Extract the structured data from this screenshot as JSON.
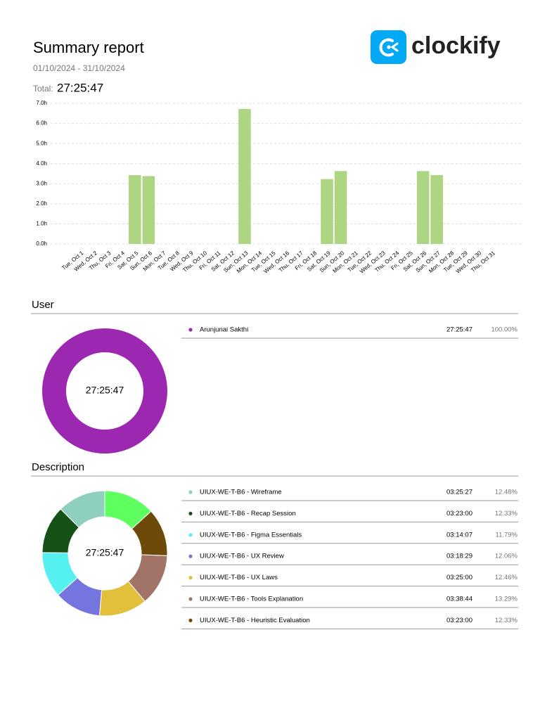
{
  "header": {
    "title": "Summary report",
    "date_range": "01/10/2024 - 31/10/2024",
    "total_label": "Total:",
    "total": "27:25:47",
    "brand": "clockify"
  },
  "chart_data": [
    {
      "type": "bar",
      "color": "#aed581",
      "grid": true,
      "categories": [
        "Tue, Oct 1",
        "Wed, Oct 2",
        "Thu, Oct 3",
        "Fri, Oct 4",
        "Sat, Oct 5",
        "Sun, Oct 6",
        "Mon, Oct 7",
        "Tue, Oct 8",
        "Wed, Oct 9",
        "Thu, Oct 10",
        "Fri, Oct 11",
        "Sat, Oct 12",
        "Sun, Oct 13",
        "Mon, Oct 14",
        "Tue, Oct 15",
        "Wed, Oct 16",
        "Thu, Oct 17",
        "Fri, Oct 18",
        "Sat, Oct 19",
        "Sun, Oct 20",
        "Mon, Oct 21",
        "Tue, Oct 22",
        "Wed, Oct 23",
        "Thu, Oct 24",
        "Fri, Oct 25",
        "Sat, Oct 26",
        "Sun, Oct 27",
        "Mon, Oct 28",
        "Tue, Oct 29",
        "Wed, Oct 30",
        "Thu, Oct 31"
      ],
      "values": [
        0,
        0,
        0,
        0,
        3.43,
        3.38,
        0,
        0,
        0,
        0,
        0,
        0,
        6.72,
        0,
        0,
        0,
        0,
        0,
        3.23,
        3.63,
        0,
        0,
        0,
        0,
        0,
        3.63,
        3.43,
        0,
        0,
        0,
        0
      ],
      "ylim": [
        0,
        7
      ],
      "yticks": [
        {
          "value": 0,
          "label": "0.0h"
        },
        {
          "value": 1,
          "label": "1.0h"
        },
        {
          "value": 2,
          "label": "2.0h"
        },
        {
          "value": 3,
          "label": "3.0h"
        },
        {
          "value": 4,
          "label": "4.0h"
        },
        {
          "value": 5,
          "label": "5.0h"
        },
        {
          "value": 6,
          "label": "6.0h"
        },
        {
          "value": 7,
          "label": "7.0h"
        }
      ]
    },
    {
      "type": "pie",
      "title": "User",
      "center_label": "27:25:47",
      "direction": "clockwise",
      "categories": [
        "Arunjunai Sakthi"
      ],
      "values": [
        100
      ],
      "value_labels": [
        "100.00%"
      ],
      "durations": [
        "27:25:47"
      ],
      "colors": [
        "#9c27b0"
      ]
    },
    {
      "type": "pie",
      "title": "Description",
      "center_label": "27:25:47",
      "direction": "counterclockwise",
      "categories": [
        "UIUX-WE-T-B6 -  Wireframe",
        "UIUX-WE-T-B6 -  Recap Session",
        "UIUX-WE-T-B6 -  Figma Essentials",
        "UIUX-WE-T-B6 -  UX Review",
        "UIUX-WE-T-B6 -  UX Laws",
        "UIUX-WE-T-B6 -  Tools Explanation",
        "UIUX-WE-T-B6 -  Heuristic Evaluation",
        null
      ],
      "values": [
        12.48,
        12.33,
        11.79,
        12.06,
        12.46,
        13.29,
        12.33,
        13.26
      ],
      "value_labels": [
        "12.48%",
        "12.33%",
        "11.79%",
        "12.06%",
        "12.46%",
        "13.29%",
        "12.33%",
        null
      ],
      "durations": [
        "03:25:27",
        "03:23:00",
        "03:14:07",
        "03:18:29",
        "03:25:00",
        "03:38:44",
        "03:23:00",
        null
      ],
      "colors": [
        "#8fcfbf",
        "#155215",
        "#55f0f0",
        "#7575e0",
        "#e2c03c",
        "#a27468",
        "#6e4a08",
        "#5eff5e"
      ]
    }
  ]
}
